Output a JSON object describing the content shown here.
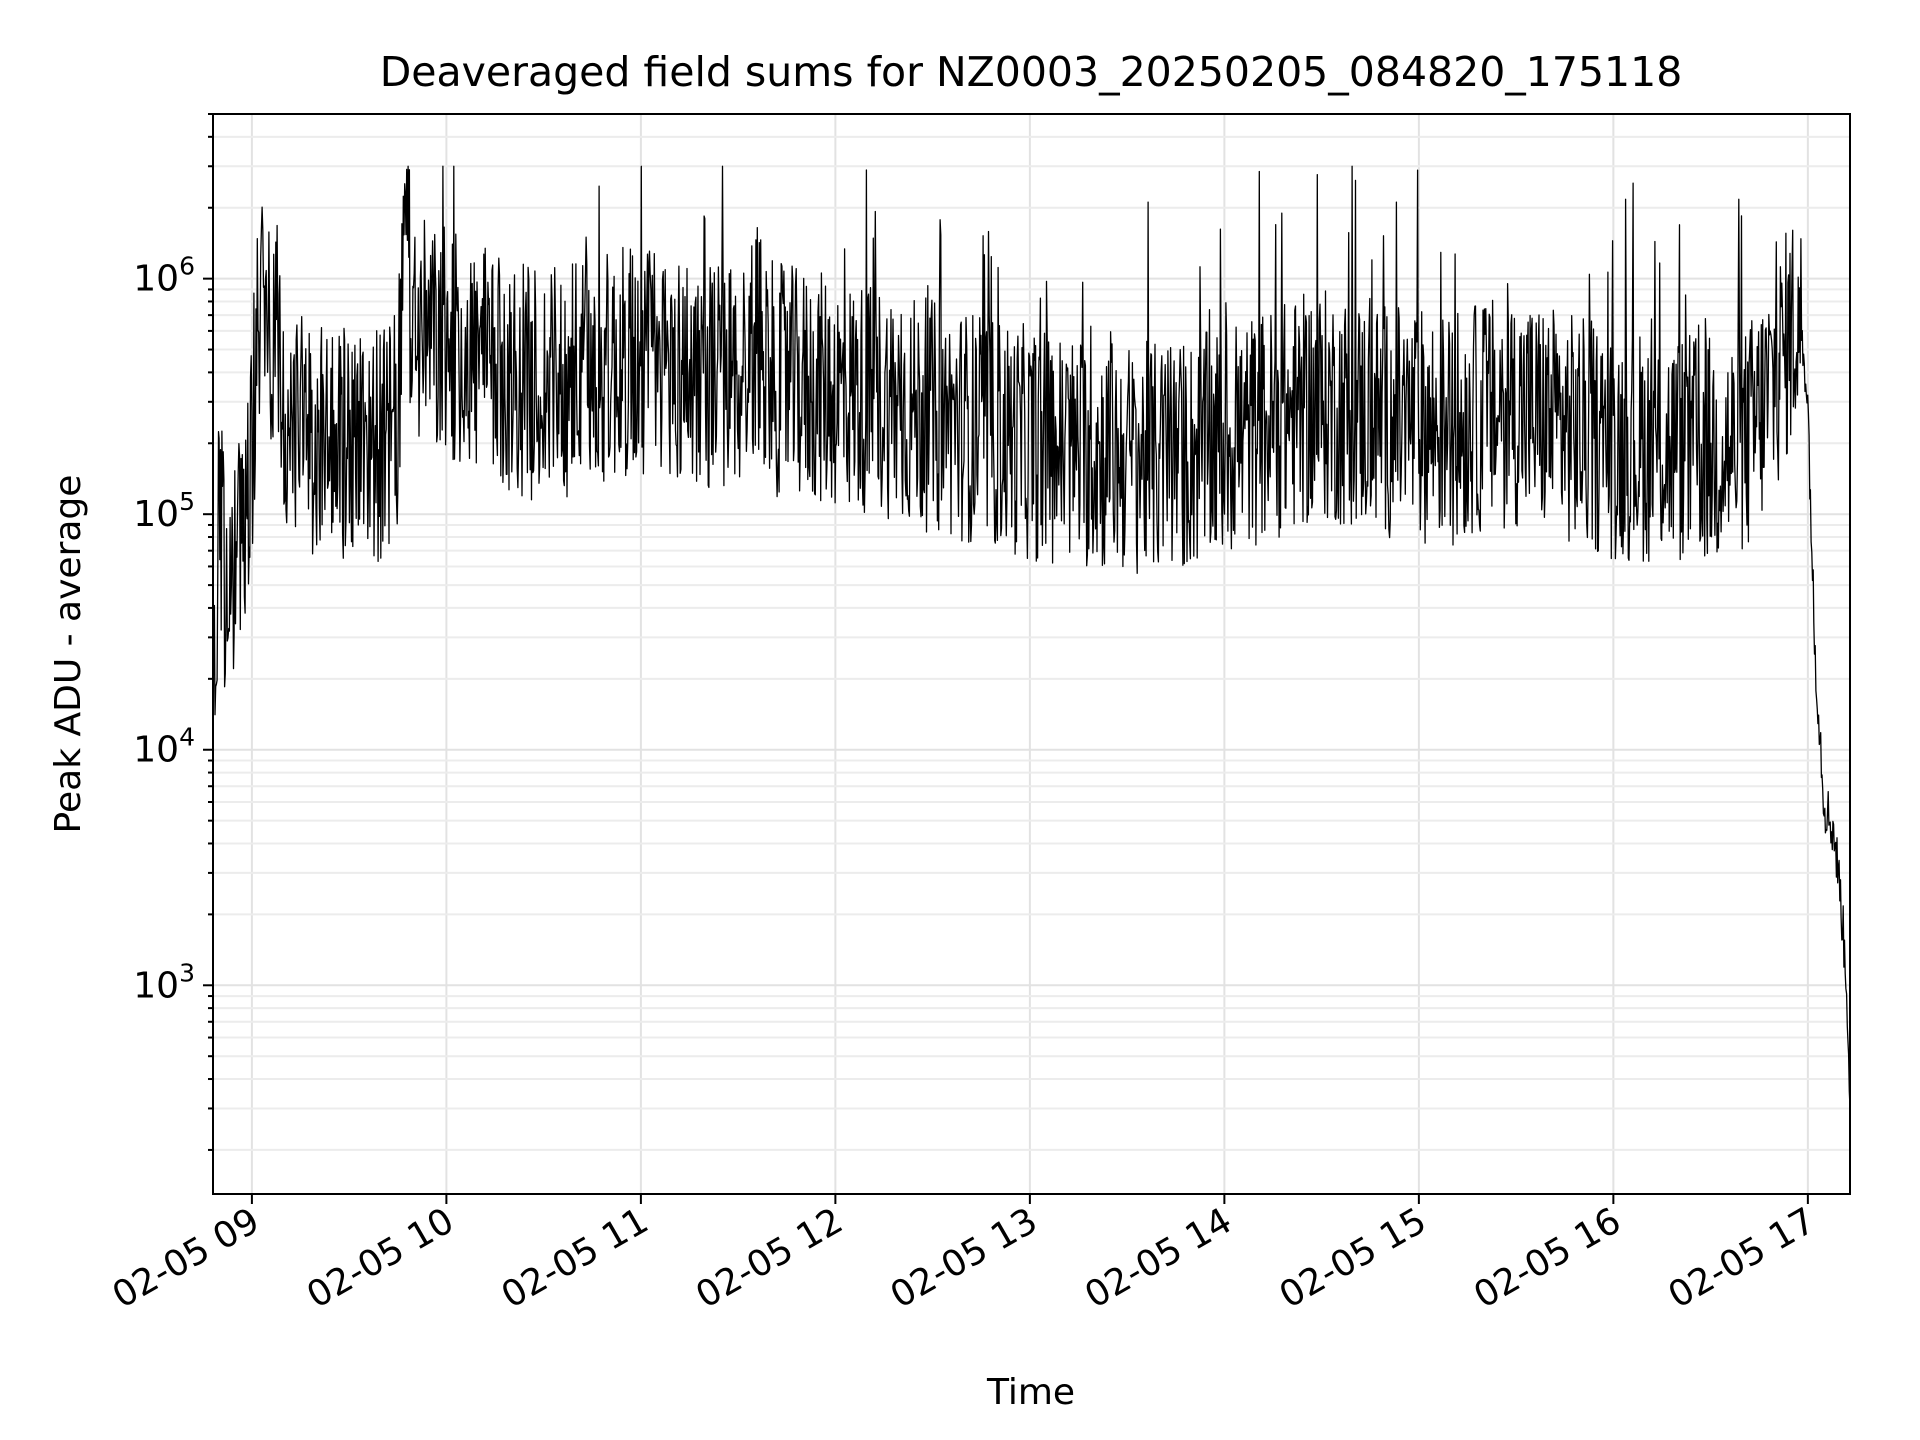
{
  "chart_data": {
    "type": "line",
    "title": "Deaveraged field sums for NZ0003_20250205_084820_175118",
    "xlabel": "Time",
    "ylabel": "Peak ADU - average",
    "yscale": "log",
    "ylim": [
      130,
      5000000
    ],
    "xlim": [
      "02-05 08:48",
      "02-05 17:13"
    ],
    "grid": true,
    "line_color": "#000000",
    "x_ticks": [
      "02-05 09",
      "02-05 10",
      "02-05 11",
      "02-05 12",
      "02-05 13",
      "02-05 14",
      "02-05 15",
      "02-05 16",
      "02-05 17"
    ],
    "y_ticks": [
      {
        "base": "10",
        "exp": "3",
        "value": 1000
      },
      {
        "base": "10",
        "exp": "4",
        "value": 10000
      },
      {
        "base": "10",
        "exp": "5",
        "value": 100000
      },
      {
        "base": "10",
        "exp": "6",
        "value": 1000000
      }
    ],
    "series": [
      {
        "x": [
          "02-05 08:48",
          "02-05 08:50",
          "02-05 08:52",
          "02-05 08:54",
          "02-05 08:56",
          "02-05 08:58",
          "02-05 09:00",
          "02-05 09:02",
          "02-05 09:04",
          "02-05 09:06",
          "02-05 09:08",
          "02-05 09:10",
          "02-05 09:15",
          "02-05 09:20",
          "02-05 09:25",
          "02-05 09:30",
          "02-05 09:35",
          "02-05 09:40",
          "02-05 09:45",
          "02-05 09:47",
          "02-05 09:50",
          "02-05 09:55",
          "02-05 10:00",
          "02-05 10:05",
          "02-05 10:10",
          "02-05 10:15",
          "02-05 10:20",
          "02-05 10:30",
          "02-05 10:40",
          "02-05 10:50",
          "02-05 11:00",
          "02-05 11:10",
          "02-05 11:20",
          "02-05 11:30",
          "02-05 11:37",
          "02-05 11:40",
          "02-05 11:50",
          "02-05 12:00",
          "02-05 12:10",
          "02-05 12:18",
          "02-05 12:20",
          "02-05 12:30",
          "02-05 12:40",
          "02-05 12:50",
          "02-05 13:00",
          "02-05 13:10",
          "02-05 13:20",
          "02-05 13:30",
          "02-05 13:40",
          "02-05 13:50",
          "02-05 14:00",
          "02-05 14:10",
          "02-05 14:20",
          "02-05 14:30",
          "02-05 14:40",
          "02-05 14:50",
          "02-05 15:00",
          "02-05 15:10",
          "02-05 15:20",
          "02-05 15:30",
          "02-05 15:40",
          "02-05 15:50",
          "02-05 16:00",
          "02-05 16:10",
          "02-05 16:20",
          "02-05 16:30",
          "02-05 16:40",
          "02-05 16:45",
          "02-05 16:50",
          "02-05 16:54",
          "02-05 16:57",
          "02-05 16:59",
          "02-05 17:00",
          "02-05 17:02",
          "02-05 17:05",
          "02-05 17:08",
          "02-05 17:10",
          "02-05 17:12",
          "02-05 17:13"
        ],
        "y": [
          20000,
          100000,
          40000,
          60000,
          80000,
          120000,
          200000,
          700000,
          900000,
          400000,
          600000,
          250000,
          220000,
          200000,
          180000,
          210000,
          220000,
          190000,
          230000,
          1500000,
          600000,
          550000,
          520000,
          480000,
          450000,
          400000,
          380000,
          350000,
          380000,
          420000,
          450000,
          420000,
          400000,
          380000,
          600000,
          380000,
          350000,
          330000,
          310000,
          300000,
          280000,
          260000,
          240000,
          220000,
          200000,
          190000,
          180000,
          175000,
          170000,
          180000,
          200000,
          230000,
          260000,
          290000,
          270000,
          250000,
          240000,
          230000,
          260000,
          280000,
          250000,
          220000,
          200000,
          195000,
          190000,
          185000,
          190000,
          260000,
          380000,
          550000,
          700000,
          450000,
          300000,
          30000,
          6000,
          4500,
          2500,
          1000,
          330
        ]
      }
    ]
  }
}
